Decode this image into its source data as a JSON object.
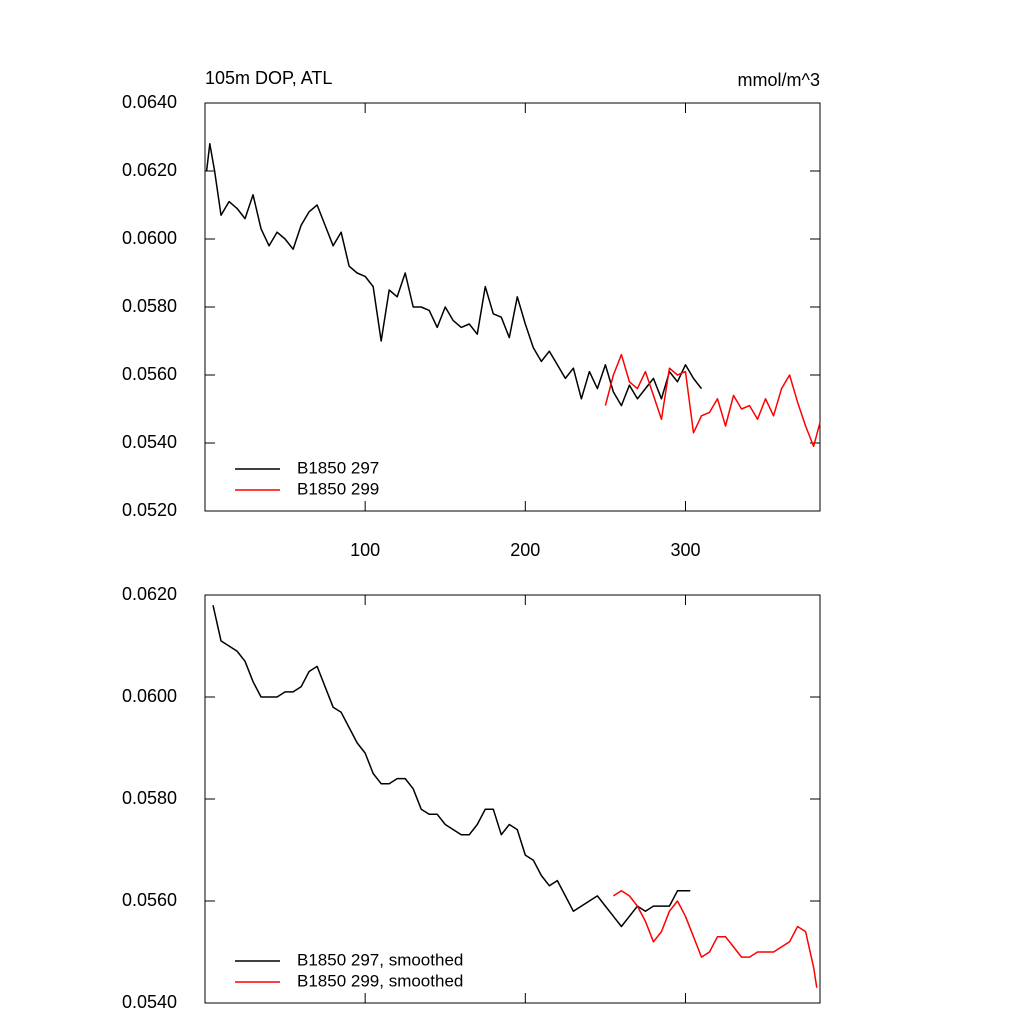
{
  "chart_data": [
    {
      "type": "line",
      "title": "105m DOP, ATL",
      "units": "mmol/m^3",
      "xlim": [
        0,
        384
      ],
      "xticks": [
        100,
        200,
        300
      ],
      "show_xtick_labels": true,
      "ylim": [
        0.052,
        0.064
      ],
      "yticks": [
        {
          "value": 0.052,
          "label": "0.0520"
        },
        {
          "value": 0.054,
          "label": "0.0540"
        },
        {
          "value": 0.056,
          "label": "0.0560"
        },
        {
          "value": 0.058,
          "label": "0.0580"
        },
        {
          "value": 0.06,
          "label": "0.0600"
        },
        {
          "value": 0.062,
          "label": "0.0620"
        },
        {
          "value": 0.064,
          "label": "0.0640"
        }
      ],
      "legend": "lower left",
      "series": [
        {
          "name": "B1850 297",
          "color": "#000000",
          "x": [
            1,
            3,
            6,
            10,
            15,
            20,
            25,
            30,
            35,
            40,
            45,
            50,
            55,
            60,
            65,
            70,
            75,
            80,
            85,
            90,
            95,
            100,
            105,
            110,
            115,
            120,
            125,
            130,
            135,
            140,
            145,
            150,
            155,
            160,
            165,
            170,
            175,
            180,
            185,
            190,
            195,
            200,
            205,
            210,
            215,
            220,
            225,
            230,
            235,
            240,
            245,
            250,
            255,
            260,
            265,
            270,
            275,
            280,
            285,
            290,
            295,
            300,
            305,
            310
          ],
          "values": [
            0.062,
            0.0628,
            0.062,
            0.0607,
            0.0611,
            0.0609,
            0.0606,
            0.0613,
            0.0603,
            0.0598,
            0.0602,
            0.06,
            0.0597,
            0.0604,
            0.0608,
            0.061,
            0.0604,
            0.0598,
            0.0602,
            0.0592,
            0.059,
            0.0589,
            0.0586,
            0.057,
            0.0585,
            0.0583,
            0.059,
            0.058,
            0.058,
            0.0579,
            0.0574,
            0.058,
            0.0576,
            0.0574,
            0.0575,
            0.0572,
            0.0586,
            0.0578,
            0.0577,
            0.0571,
            0.0583,
            0.0575,
            0.0568,
            0.0564,
            0.0567,
            0.0563,
            0.0559,
            0.0562,
            0.0553,
            0.0561,
            0.0556,
            0.0563,
            0.0555,
            0.0551,
            0.0557,
            0.0553,
            0.0556,
            0.0559,
            0.0553,
            0.0561,
            0.0558,
            0.0563,
            0.0559,
            0.0556
          ]
        },
        {
          "name": "B1850 299",
          "color": "#ff0000",
          "x": [
            250,
            255,
            260,
            265,
            270,
            275,
            280,
            285,
            290,
            295,
            300,
            305,
            310,
            315,
            320,
            325,
            330,
            335,
            340,
            345,
            350,
            355,
            360,
            365,
            370,
            375,
            380,
            384
          ],
          "values": [
            0.0551,
            0.056,
            0.0566,
            0.0558,
            0.0556,
            0.0561,
            0.0554,
            0.0547,
            0.0562,
            0.056,
            0.0561,
            0.0543,
            0.0548,
            0.0549,
            0.0553,
            0.0545,
            0.0554,
            0.055,
            0.0551,
            0.0547,
            0.0553,
            0.0548,
            0.0556,
            0.056,
            0.0552,
            0.0545,
            0.0539,
            0.0546
          ]
        }
      ]
    },
    {
      "type": "line",
      "xlim": [
        0,
        384
      ],
      "xticks": [
        100,
        200,
        300
      ],
      "show_xtick_labels": false,
      "ylim": [
        0.054,
        0.062
      ],
      "yticks": [
        {
          "value": 0.054,
          "label": "0.0540"
        },
        {
          "value": 0.056,
          "label": "0.0560"
        },
        {
          "value": 0.058,
          "label": "0.0580"
        },
        {
          "value": 0.06,
          "label": "0.0600"
        },
        {
          "value": 0.062,
          "label": "0.0620"
        }
      ],
      "legend": "lower left",
      "series": [
        {
          "name": "B1850 297, smoothed",
          "color": "#000000",
          "x": [
            5,
            10,
            15,
            20,
            25,
            30,
            35,
            40,
            45,
            50,
            55,
            60,
            65,
            70,
            75,
            80,
            85,
            90,
            95,
            100,
            105,
            110,
            115,
            120,
            125,
            130,
            135,
            140,
            145,
            150,
            155,
            160,
            165,
            170,
            175,
            180,
            185,
            190,
            195,
            200,
            205,
            210,
            215,
            220,
            225,
            230,
            235,
            240,
            245,
            250,
            255,
            260,
            265,
            270,
            275,
            280,
            285,
            290,
            295,
            300,
            303
          ],
          "values": [
            0.0618,
            0.0611,
            0.061,
            0.0609,
            0.0607,
            0.0603,
            0.06,
            0.06,
            0.06,
            0.0601,
            0.0601,
            0.0602,
            0.0605,
            0.0606,
            0.0602,
            0.0598,
            0.0597,
            0.0594,
            0.0591,
            0.0589,
            0.0585,
            0.0583,
            0.0583,
            0.0584,
            0.0584,
            0.0582,
            0.0578,
            0.0577,
            0.0577,
            0.0575,
            0.0574,
            0.0573,
            0.0573,
            0.0575,
            0.0578,
            0.0578,
            0.0573,
            0.0575,
            0.0574,
            0.0569,
            0.0568,
            0.0565,
            0.0563,
            0.0564,
            0.0561,
            0.0558,
            0.0559,
            0.056,
            0.0561,
            0.0559,
            0.0557,
            0.0555,
            0.0557,
            0.0559,
            0.0558,
            0.0559,
            0.0559,
            0.0559,
            0.0562,
            0.0562,
            0.0562
          ]
        },
        {
          "name": "B1850 299, smoothed",
          "color": "#ff0000",
          "x": [
            255,
            260,
            265,
            270,
            275,
            280,
            285,
            290,
            295,
            300,
            305,
            310,
            315,
            320,
            325,
            330,
            335,
            340,
            345,
            350,
            355,
            360,
            365,
            370,
            375,
            380,
            382
          ],
          "values": [
            0.0561,
            0.0562,
            0.0561,
            0.0559,
            0.0556,
            0.0552,
            0.0554,
            0.0558,
            0.056,
            0.0557,
            0.0553,
            0.0549,
            0.055,
            0.0553,
            0.0553,
            0.0551,
            0.0549,
            0.0549,
            0.055,
            0.055,
            0.055,
            0.0551,
            0.0552,
            0.0555,
            0.0554,
            0.0547,
            0.0543
          ]
        }
      ]
    }
  ]
}
